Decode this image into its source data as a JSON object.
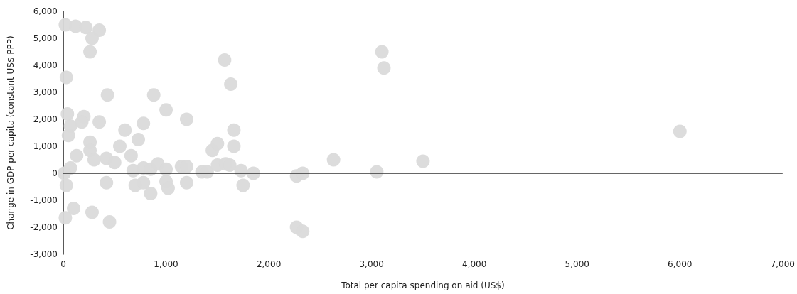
{
  "chart_data": {
    "type": "scatter",
    "xlabel": "Total per capita spending on aid (US$)",
    "ylabel": "Change in GDP per capita (constant US$ PPP)",
    "xlim": [
      0,
      7000
    ],
    "xticks": [
      {
        "value": 0,
        "label": "0"
      },
      {
        "value": 1000,
        "label": "1,000"
      },
      {
        "value": 2000,
        "label": "2,000"
      },
      {
        "value": 3000,
        "label": "3,000"
      },
      {
        "value": 4000,
        "label": "4,000"
      },
      {
        "value": 5000,
        "label": "5,000"
      },
      {
        "value": 6000,
        "label": "6,000"
      },
      {
        "value": 7000,
        "label": "7,000"
      }
    ],
    "ylim": [
      -3000,
      6000
    ],
    "yticks": [
      {
        "value": -3000,
        "label": "-3,000"
      },
      {
        "value": -2000,
        "label": "-2,000"
      },
      {
        "value": -1000,
        "label": "-1,000"
      },
      {
        "value": 0,
        "label": "0"
      },
      {
        "value": 1000,
        "label": "1,000"
      },
      {
        "value": 2000,
        "label": "2,000"
      },
      {
        "value": 3000,
        "label": "3,000"
      },
      {
        "value": 4000,
        "label": "4,000"
      },
      {
        "value": 5000,
        "label": "5,000"
      },
      {
        "value": 6000,
        "label": "6,000"
      }
    ],
    "grid": false,
    "marker": "circle",
    "ref_lines": [
      {
        "axis": "y",
        "value": 0,
        "color": "#333333"
      }
    ],
    "series": [
      {
        "color": "#dadada",
        "x": [
          20,
          120,
          220,
          350,
          280,
          260,
          30,
          40,
          70,
          50,
          200,
          180,
          350,
          430,
          260,
          260,
          130,
          300,
          70,
          10,
          30,
          100,
          20,
          280,
          450,
          420,
          420,
          500,
          550,
          600,
          660,
          680,
          700,
          780,
          730,
          880,
          1000,
          1200,
          780,
          850,
          780,
          850,
          920,
          1000,
          1000,
          1020,
          1150,
          1200,
          1200,
          1350,
          1400,
          1450,
          1500,
          1500,
          1580,
          1620,
          1570,
          1630,
          1660,
          1660,
          1730,
          1750,
          1850,
          2270,
          2330,
          2270,
          2330,
          2630,
          3050,
          3100,
          3120,
          3500,
          6000
        ],
        "values": [
          5500,
          5450,
          5400,
          5300,
          5000,
          4500,
          3550,
          2200,
          1750,
          1400,
          2100,
          1900,
          1900,
          2900,
          1150,
          850,
          650,
          500,
          200,
          0,
          -450,
          -1300,
          -1650,
          -1450,
          -1800,
          -350,
          550,
          400,
          1000,
          1600,
          650,
          100,
          -450,
          1850,
          1250,
          2900,
          2350,
          2000,
          200,
          150,
          -350,
          -750,
          350,
          150,
          -300,
          -550,
          250,
          250,
          -350,
          50,
          50,
          850,
          1100,
          300,
          350,
          300,
          4200,
          3300,
          1600,
          1000,
          100,
          -450,
          0,
          -100,
          0,
          -2000,
          -2150,
          500,
          50,
          4500,
          3900,
          450,
          1550
        ]
      }
    ]
  }
}
